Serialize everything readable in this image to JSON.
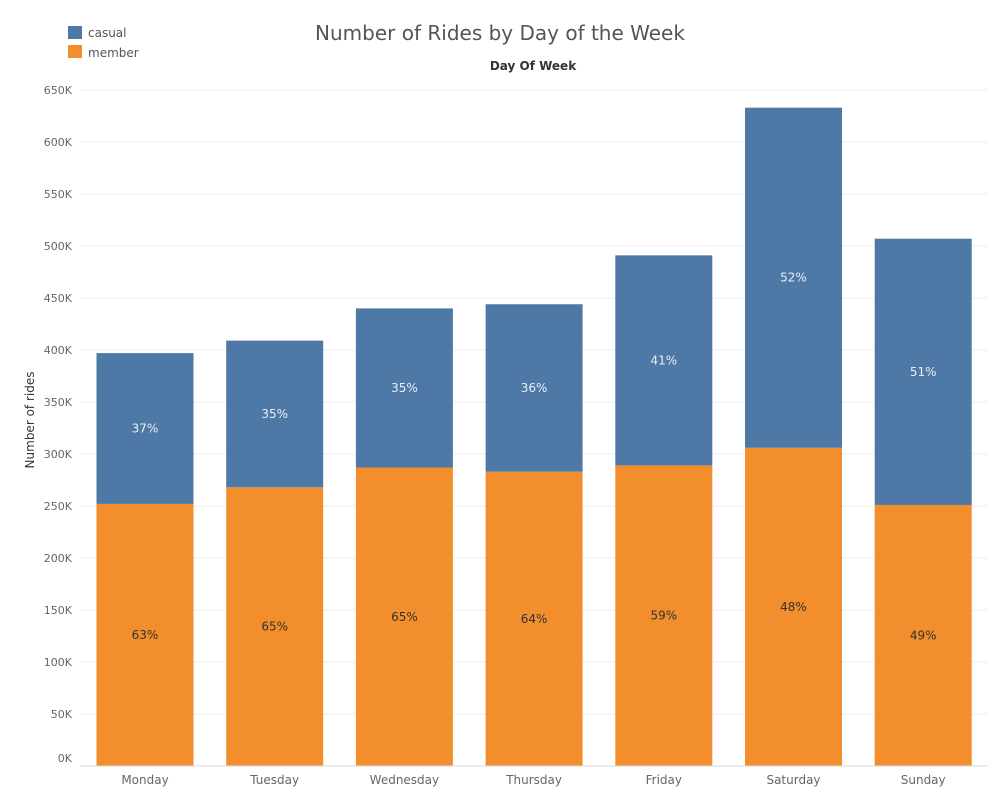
{
  "chart_data": {
    "type": "bar",
    "stacked": true,
    "title": "Number of Rides by Day of the Week",
    "top_axis_label": "Day Of Week",
    "ylabel": "Number of rides",
    "xlabel": "",
    "ylim": [
      0,
      650000
    ],
    "yticks": [
      {
        "value": 0,
        "label": "0K"
      },
      {
        "value": 50000,
        "label": "50K"
      },
      {
        "value": 100000,
        "label": "100K"
      },
      {
        "value": 150000,
        "label": "150K"
      },
      {
        "value": 200000,
        "label": "200K"
      },
      {
        "value": 250000,
        "label": "250K"
      },
      {
        "value": 300000,
        "label": "300K"
      },
      {
        "value": 350000,
        "label": "350K"
      },
      {
        "value": 400000,
        "label": "400K"
      },
      {
        "value": 450000,
        "label": "450K"
      },
      {
        "value": 500000,
        "label": "500K"
      },
      {
        "value": 550000,
        "label": "550K"
      },
      {
        "value": 600000,
        "label": "600K"
      },
      {
        "value": 650000,
        "label": "650K"
      }
    ],
    "grid": true,
    "legend_position": "top-left",
    "categories": [
      "Monday",
      "Tuesday",
      "Wednesday",
      "Thursday",
      "Friday",
      "Saturday",
      "Sunday"
    ],
    "series": [
      {
        "name": "member",
        "color": "#f28e2b",
        "values": [
          252000,
          268000,
          287000,
          283000,
          289000,
          306000,
          251000
        ],
        "pct_labels": [
          "63%",
          "65%",
          "65%",
          "64%",
          "59%",
          "48%",
          "49%"
        ]
      },
      {
        "name": "casual",
        "color": "#4e79a7",
        "values": [
          145000,
          141000,
          153000,
          161000,
          202000,
          327000,
          256000
        ],
        "pct_labels": [
          "37%",
          "35%",
          "35%",
          "36%",
          "41%",
          "52%",
          "51%"
        ]
      }
    ],
    "legend": [
      {
        "name": "casual",
        "color": "#4e79a7"
      },
      {
        "name": "member",
        "color": "#f28e2b"
      }
    ]
  }
}
